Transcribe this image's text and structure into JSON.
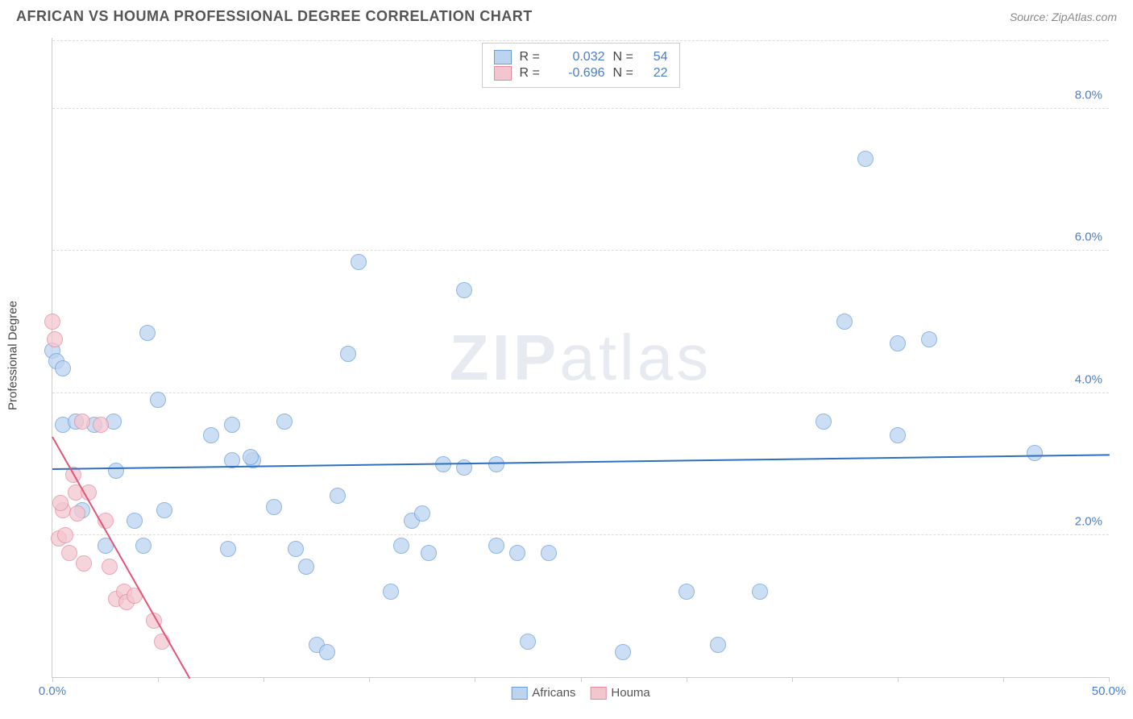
{
  "title": "AFRICAN VS HOUMA PROFESSIONAL DEGREE CORRELATION CHART",
  "source": "Source: ZipAtlas.com",
  "y_axis_label": "Professional Degree",
  "watermark": {
    "bold": "ZIP",
    "rest": "atlas"
  },
  "x_axis": {
    "min": 0.0,
    "max": 50.0,
    "ticks": [
      0,
      5,
      10,
      15,
      20,
      25,
      30,
      35,
      40,
      45,
      50
    ],
    "label_min": "0.0%",
    "label_max": "50.0%",
    "label_color": "#4a7ec9"
  },
  "y_axis": {
    "min": 0.0,
    "max": 9.0,
    "gridlines": [
      2.0,
      4.0,
      6.0,
      8.0
    ],
    "tick_labels": [
      "2.0%",
      "4.0%",
      "6.0%",
      "8.0%"
    ],
    "label_color": "#4a7ec9"
  },
  "series": [
    {
      "name": "Africans",
      "color_fill": "#bcd4f0",
      "color_stroke": "#6b9edb",
      "marker_radius": 10,
      "marker_opacity": 0.75,
      "R": "0.032",
      "N": "54",
      "trend": {
        "x1": 0.0,
        "y1": 2.95,
        "x2": 50.0,
        "y2": 3.15,
        "color": "#2f6fc0",
        "width": 2
      },
      "points": [
        [
          0.0,
          4.6
        ],
        [
          0.2,
          4.45
        ],
        [
          0.5,
          4.35
        ],
        [
          0.5,
          3.55
        ],
        [
          1.1,
          3.6
        ],
        [
          2.0,
          3.55
        ],
        [
          1.4,
          2.35
        ],
        [
          2.9,
          3.6
        ],
        [
          2.5,
          1.85
        ],
        [
          3.0,
          2.9
        ],
        [
          3.9,
          2.2
        ],
        [
          4.5,
          4.85
        ],
        [
          5.0,
          3.9
        ],
        [
          4.3,
          1.85
        ],
        [
          5.3,
          2.35
        ],
        [
          7.5,
          3.4
        ],
        [
          8.5,
          3.55
        ],
        [
          8.5,
          3.05
        ],
        [
          8.3,
          1.8
        ],
        [
          9.5,
          3.05
        ],
        [
          9.4,
          3.1
        ],
        [
          10.5,
          2.4
        ],
        [
          11.0,
          3.6
        ],
        [
          11.5,
          1.8
        ],
        [
          12.0,
          1.55
        ],
        [
          12.5,
          0.45
        ],
        [
          13.0,
          0.35
        ],
        [
          13.5,
          2.55
        ],
        [
          14.5,
          5.85
        ],
        [
          14.0,
          4.55
        ],
        [
          16.0,
          1.2
        ],
        [
          16.5,
          1.85
        ],
        [
          17.0,
          2.2
        ],
        [
          17.5,
          2.3
        ],
        [
          17.8,
          1.75
        ],
        [
          18.5,
          3.0
        ],
        [
          19.5,
          5.45
        ],
        [
          19.5,
          2.95
        ],
        [
          21.0,
          1.85
        ],
        [
          21.0,
          3.0
        ],
        [
          22.0,
          1.75
        ],
        [
          22.5,
          0.5
        ],
        [
          23.5,
          1.75
        ],
        [
          27.0,
          0.35
        ],
        [
          30.0,
          1.2
        ],
        [
          31.5,
          0.45
        ],
        [
          33.5,
          1.2
        ],
        [
          36.5,
          3.6
        ],
        [
          37.5,
          5.0
        ],
        [
          40.0,
          4.7
        ],
        [
          41.5,
          4.75
        ],
        [
          40.0,
          3.4
        ],
        [
          38.5,
          7.3
        ],
        [
          46.5,
          3.15
        ]
      ]
    },
    {
      "name": "Houma",
      "color_fill": "#f3c6cf",
      "color_stroke": "#e68aa0",
      "marker_radius": 10,
      "marker_opacity": 0.75,
      "R": "-0.696",
      "N": "22",
      "trend": {
        "x1": 0.0,
        "y1": 3.4,
        "x2": 6.5,
        "y2": 0.0,
        "color": "#e25578",
        "width": 2
      },
      "points": [
        [
          0.0,
          5.0
        ],
        [
          0.1,
          4.75
        ],
        [
          0.5,
          2.35
        ],
        [
          0.3,
          1.95
        ],
        [
          0.4,
          2.45
        ],
        [
          0.6,
          2.0
        ],
        [
          0.8,
          1.75
        ],
        [
          1.0,
          2.85
        ],
        [
          1.1,
          2.6
        ],
        [
          1.4,
          3.6
        ],
        [
          1.2,
          2.3
        ],
        [
          1.5,
          1.6
        ],
        [
          1.7,
          2.6
        ],
        [
          2.3,
          3.55
        ],
        [
          2.5,
          2.2
        ],
        [
          2.7,
          1.55
        ],
        [
          3.0,
          1.1
        ],
        [
          3.4,
          1.2
        ],
        [
          3.5,
          1.05
        ],
        [
          3.9,
          1.15
        ],
        [
          4.8,
          0.8
        ],
        [
          5.2,
          0.5
        ]
      ]
    }
  ],
  "legend_bottom": [
    {
      "label": "Africans",
      "fill": "#bcd4f0",
      "stroke": "#6b9edb"
    },
    {
      "label": "Houma",
      "fill": "#f3c6cf",
      "stroke": "#e68aa0"
    }
  ]
}
